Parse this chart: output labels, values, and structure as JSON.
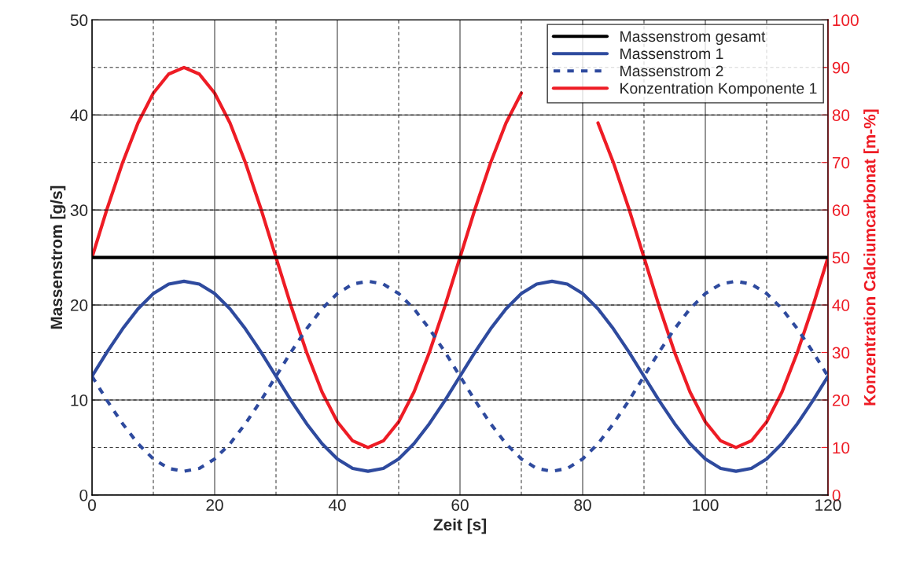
{
  "chart_data": {
    "type": "line",
    "xlabel": "Zeit [s]",
    "ylabel": "Massenstrom [g/s]",
    "y2label": "Konzentration Calciumcarbonat [m-%]",
    "x": [
      0,
      2.5,
      5,
      7.5,
      10,
      12.5,
      15,
      17.5,
      20,
      22.5,
      25,
      27.5,
      30,
      32.5,
      35,
      37.5,
      40,
      42.5,
      45,
      47.5,
      50,
      52.5,
      55,
      57.5,
      60,
      62.5,
      65,
      67.5,
      70,
      72.5,
      75,
      77.5,
      80,
      82.5,
      85,
      87.5,
      90,
      92.5,
      95,
      97.5,
      100,
      102.5,
      105,
      107.5,
      110,
      112.5,
      115,
      117.5,
      120
    ],
    "series": [
      {
        "name": "Massenstrom gesamt",
        "color": "#000000",
        "x": [
          0,
          120
        ],
        "values": [
          25,
          25
        ]
      },
      {
        "name": "Massenstrom 1",
        "color": "#2e4a9e",
        "values": [
          12.5,
          15.1,
          17.5,
          19.6,
          21.2,
          22.2,
          22.5,
          22.2,
          21.2,
          19.6,
          17.5,
          15.1,
          12.5,
          9.9,
          7.5,
          5.4,
          3.8,
          2.8,
          2.5,
          2.8,
          3.8,
          5.4,
          7.5,
          9.9,
          12.5,
          15.1,
          17.5,
          19.6,
          21.2,
          22.2,
          22.5,
          22.2,
          21.2,
          19.6,
          17.5,
          15.1,
          12.5,
          9.9,
          7.5,
          5.4,
          3.8,
          2.8,
          2.5,
          2.8,
          3.8,
          5.4,
          7.5,
          9.9,
          12.5
        ]
      },
      {
        "name": "Massenstrom 2",
        "color": "#2e4a9e",
        "line_style": "dashed",
        "values": [
          12.5,
          9.9,
          7.5,
          5.4,
          3.8,
          2.8,
          2.5,
          2.8,
          3.8,
          5.4,
          7.5,
          9.9,
          12.5,
          15.1,
          17.5,
          19.6,
          21.2,
          22.2,
          22.5,
          22.2,
          21.2,
          19.6,
          17.5,
          15.1,
          12.5,
          9.9,
          7.5,
          5.4,
          3.8,
          2.8,
          2.5,
          2.8,
          3.8,
          5.4,
          7.5,
          9.9,
          12.5,
          15.1,
          17.5,
          19.6,
          21.2,
          22.2,
          22.5,
          22.2,
          21.2,
          19.6,
          17.5,
          15.1,
          12.5
        ]
      },
      {
        "name": "Konzentration Komponente 1",
        "color": "#ee1c25",
        "axis": "y2",
        "values": [
          50,
          60.4,
          70,
          78.3,
          84.6,
          88.6,
          90,
          88.6,
          84.6,
          78.3,
          70,
          60.4,
          50,
          39.6,
          30,
          21.7,
          15.4,
          11.4,
          10,
          11.4,
          15.4,
          21.7,
          30,
          39.6,
          50,
          60.4,
          70,
          78.3,
          84.6,
          null,
          null,
          null,
          null,
          78.3,
          70,
          60.4,
          50,
          39.6,
          30,
          21.7,
          15.4,
          11.4,
          10,
          11.4,
          15.4,
          21.7,
          30,
          39.6,
          50
        ]
      }
    ],
    "xlim": [
      0,
      120
    ],
    "xticks": [
      0,
      {
        "value": 10,
        "label": null
      },
      20,
      {
        "value": 30,
        "label": null
      },
      40,
      {
        "value": 50,
        "label": null
      },
      60,
      {
        "value": 70,
        "label": null
      },
      80,
      {
        "value": 90,
        "label": null
      },
      100,
      {
        "value": 110,
        "label": null
      },
      120
    ],
    "ylim": [
      0,
      50
    ],
    "yticks": [
      0,
      10,
      20,
      30,
      40,
      50
    ],
    "y2lim": [
      0,
      100
    ],
    "y2ticks": [
      0,
      10,
      20,
      30,
      40,
      50,
      60,
      70,
      80,
      90,
      100
    ],
    "grid": true,
    "legend": "top right",
    "marker": "none",
    "line_style": "solid"
  }
}
